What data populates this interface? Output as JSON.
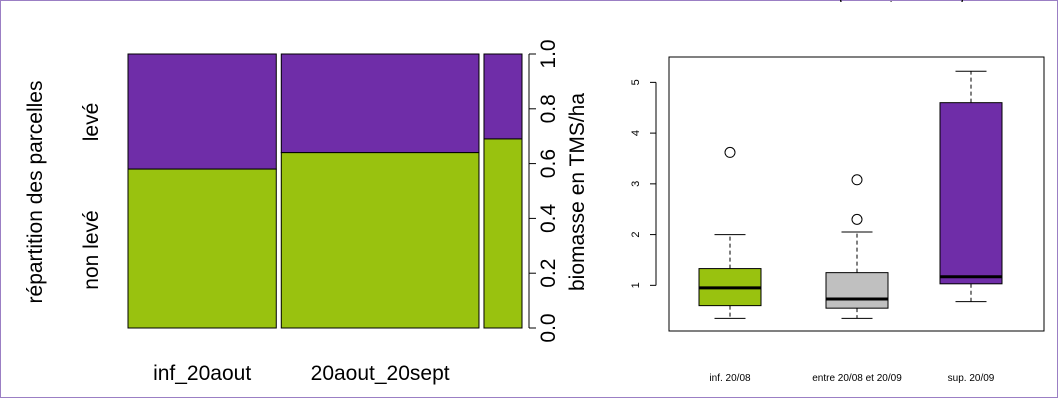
{
  "page": {
    "header_fragments": [
      "",
      "(",
      ",",
      ")"
    ]
  },
  "chart_data": [
    {
      "type": "mosaic",
      "ylabel_left": "répartition des parcelles",
      "row_labels": [
        "levé",
        "non levé"
      ],
      "categories": [
        "inf_20aout",
        "20aout_20sept",
        ""
      ],
      "category_widths": [
        0.39,
        0.52,
        0.1
      ],
      "non_leve_fraction": [
        0.58,
        0.64,
        0.69
      ],
      "ylabel_right": "biomasse en TMS/ha",
      "ylim": [
        0.0,
        1.0
      ],
      "yticks": [
        "0.0",
        "0.2",
        "0.4",
        "0.6",
        "0.8",
        "1.0"
      ],
      "colors": {
        "leve": "#6f2da8",
        "non_leve": "#99c20f"
      }
    },
    {
      "type": "boxplot",
      "categories": [
        "inf. 20/08",
        "entre 20/08 et 20/09",
        "sup. 20/09"
      ],
      "ylim": [
        0.1,
        5.5
      ],
      "yticks": [
        "1",
        "2",
        "3",
        "4",
        "5"
      ],
      "boxes": [
        {
          "whisker_low": 0.35,
          "q1": 0.6,
          "median": 0.95,
          "q3": 1.33,
          "whisker_high": 2.0,
          "outliers": [
            3.62
          ]
        },
        {
          "whisker_low": 0.35,
          "q1": 0.55,
          "median": 0.73,
          "q3": 1.25,
          "whisker_high": 2.05,
          "outliers": [
            2.3,
            3.08
          ]
        },
        {
          "whisker_low": 0.68,
          "q1": 1.03,
          "median": 1.17,
          "q3": 4.6,
          "whisker_high": 5.22,
          "outliers": []
        }
      ],
      "colors": [
        "#99c20f",
        "#c0c0c0",
        "#6f2da8"
      ]
    }
  ]
}
